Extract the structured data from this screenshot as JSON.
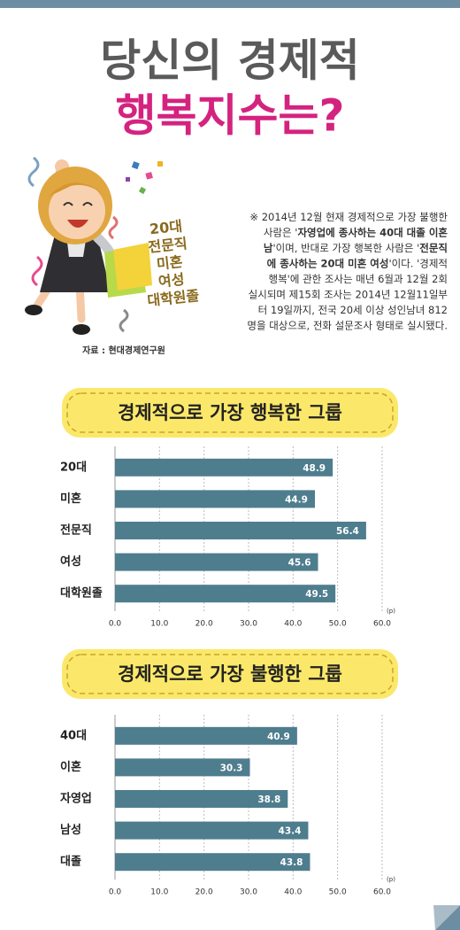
{
  "header": {
    "title_line1": "당신의 경제적",
    "title_line2": "행복지수는?"
  },
  "side_label": [
    "20대",
    "전문직",
    "미혼",
    "여성",
    "대학원졸"
  ],
  "source": "자료 : 현대경제연구원",
  "paragraph": [
    [
      {
        "text": "※ 2014년 12월 현재 경제적으로 가장 불행한",
        "bold": false
      }
    ],
    [
      {
        "text": "사람은 '",
        "bold": false
      },
      {
        "text": "자영업에 종사하는 40대 대졸 이혼",
        "bold": true
      }
    ],
    [
      {
        "text": "남",
        "bold": true
      },
      {
        "text": "'이며, 반대로 가장 행복한 사람은 '",
        "bold": false
      },
      {
        "text": "전문직",
        "bold": true
      }
    ],
    [
      {
        "text": "에 종사하는 20대 미혼 여성",
        "bold": true
      },
      {
        "text": "'이다. '경제적",
        "bold": false
      }
    ],
    [
      {
        "text": "행복'에 관한 조사는 매년 6월과 12월 2회",
        "bold": false
      }
    ],
    [
      {
        "text": "실시되며 제15회 조사는 2014년 12월11일부",
        "bold": false
      }
    ],
    [
      {
        "text": "터 19일까지, 전국 20세 이상 성인남녀 812",
        "bold": false
      }
    ],
    [
      {
        "text": "명을 대상으로, 전화 설문조사 형태로 실시됐다.",
        "bold": false
      }
    ]
  ],
  "chart_data": [
    {
      "type": "bar",
      "orientation": "horizontal",
      "title": "경제적으로 가장 행복한 그룹",
      "categories": [
        "20대",
        "미혼",
        "전문직",
        "여성",
        "대학원졸"
      ],
      "values": [
        48.9,
        44.9,
        56.4,
        45.6,
        49.5
      ],
      "color": "#4e7d8e",
      "xlim": [
        0,
        60
      ],
      "xticks": [
        {
          "value": 0,
          "label": "0.0"
        },
        {
          "value": 10,
          "label": "10.0"
        },
        {
          "value": 20,
          "label": "20.0"
        },
        {
          "value": 30,
          "label": "30.0"
        },
        {
          "value": 40,
          "label": "40.0"
        },
        {
          "value": 50,
          "label": "50.0"
        },
        {
          "value": 60,
          "label": "60.0"
        }
      ],
      "unit": "(p)",
      "grid": true
    },
    {
      "type": "bar",
      "orientation": "horizontal",
      "title": "경제적으로 가장 불행한 그룹",
      "categories": [
        "40대",
        "이혼",
        "자영업",
        "남성",
        "대졸"
      ],
      "values": [
        40.9,
        30.3,
        38.8,
        43.4,
        43.8
      ],
      "color": "#4e7d8e",
      "xlim": [
        0,
        60
      ],
      "xticks": [
        {
          "value": 0,
          "label": "0.0"
        },
        {
          "value": 10,
          "label": "10.0"
        },
        {
          "value": 20,
          "label": "20.0"
        },
        {
          "value": 30,
          "label": "30.0"
        },
        {
          "value": 40,
          "label": "40.0"
        },
        {
          "value": 50,
          "label": "50.0"
        },
        {
          "value": 60,
          "label": "60.0"
        }
      ],
      "unit": "(p)",
      "grid": true
    }
  ]
}
